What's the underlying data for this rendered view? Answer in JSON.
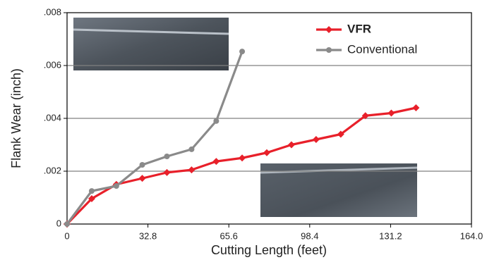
{
  "chart_data": {
    "type": "line",
    "x_label": "Cutting Length (feet)",
    "y_label": "Flank Wear (inch)",
    "x": [
      0,
      10,
      20,
      30.5,
      40.5,
      50.5,
      60.5,
      71,
      81,
      91,
      101,
      111,
      121,
      131.5,
      141.5
    ],
    "series": [
      {
        "name": "VFR",
        "color": "#e8202a",
        "marker": "diamond",
        "values": [
          0,
          0.00096,
          0.0015,
          0.00173,
          0.00195,
          0.00205,
          0.00237,
          0.0025,
          0.0027,
          0.003,
          0.0032,
          0.0034,
          0.0041,
          0.0042,
          0.0044
        ]
      },
      {
        "name": "Conventional",
        "color": "#8a8a8a",
        "marker": "circle",
        "values": [
          0,
          0.00125,
          0.00144,
          0.00224,
          0.00256,
          0.00283,
          0.0039,
          0.00653,
          null,
          null,
          null,
          null,
          null,
          null,
          null
        ]
      }
    ],
    "xlim": [
      0,
      164
    ],
    "xticks": [
      0,
      32.8,
      65.6,
      98.4,
      131.2,
      {
        "value": 164,
        "label": "164.0"
      }
    ],
    "ylim": [
      0,
      0.008
    ],
    "yticks": [
      0,
      {
        "value": 0.002,
        "label": ".002"
      },
      {
        "value": 0.004,
        "label": ".004"
      },
      {
        "value": 0.006,
        "label": ".006"
      },
      {
        "value": 0.008,
        "label": ".008"
      }
    ],
    "grid": true,
    "legend": "top-right"
  }
}
